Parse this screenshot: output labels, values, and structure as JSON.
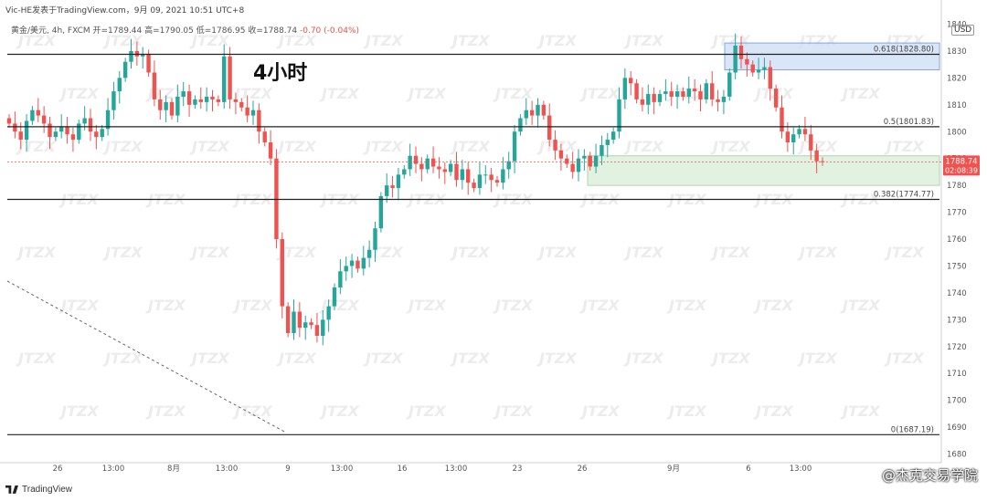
{
  "header": {
    "published": "Vic-HE发表于TradingView.com，9月 09, 2021 10:51 UTC+8",
    "ohlc": "黄金/美元, 4h, FXCM  开=1789.44  高=1790.05  低=1786.95  收=1788.74",
    "change": "-0.70 (-0.04%)"
  },
  "timeframe_label": "4小时",
  "currency": "USD",
  "footer": {
    "logo_text": "TradingView",
    "watermark": "@杰克交易学院"
  },
  "watermark_text": "JTZX",
  "chart_data": {
    "type": "candlestick",
    "ylim": [
      1680,
      1840
    ],
    "y_ticks": [
      1680,
      1690,
      1700,
      1710,
      1720,
      1730,
      1740,
      1750,
      1760,
      1770,
      1780,
      1790,
      1800,
      1810,
      1820,
      1830,
      1840
    ],
    "x_tick_labels": [
      "26",
      "13:00",
      "8月",
      "13:00",
      "9",
      "13:00",
      "16",
      "13:00",
      "23",
      "26",
      "9月",
      "6",
      "13:00"
    ],
    "last_price": "1788.74",
    "countdown": "02:08:39",
    "fib_levels": [
      {
        "label": "0.618(1828.80)",
        "value": 1828.8
      },
      {
        "label": "0.5(1801.83)",
        "value": 1801.83
      },
      {
        "label": "0.382(1774.77)",
        "value": 1774.77
      },
      {
        "label": "0(1687.19)",
        "value": 1687.19
      }
    ],
    "zones": [
      {
        "name": "resistance",
        "from": 1823,
        "to": 1833,
        "color": "#cfe0f7"
      },
      {
        "name": "support",
        "from": 1780,
        "to": 1791,
        "color": "#dcefd9"
      }
    ],
    "colors": {
      "up": "#26a69a",
      "down": "#ef5350",
      "line": "#222222",
      "last": "#ef5350"
    },
    "close_series": [
      1803,
      1800,
      1797,
      1804,
      1808,
      1806,
      1803,
      1798,
      1800,
      1802,
      1799,
      1797,
      1803,
      1805,
      1800,
      1798,
      1801,
      1808,
      1815,
      1820,
      1826,
      1830,
      1828,
      1829,
      1822,
      1812,
      1808,
      1811,
      1806,
      1813,
      1815,
      1810,
      1812,
      1811,
      1813,
      1812,
      1811,
      1828,
      1812,
      1811,
      1809,
      1806,
      1808,
      1800,
      1796,
      1790,
      1760,
      1735,
      1725,
      1733,
      1727,
      1729,
      1728,
      1724,
      1730,
      1735,
      1742,
      1748,
      1750,
      1752,
      1749,
      1753,
      1756,
      1764,
      1776,
      1780,
      1779,
      1784,
      1786,
      1791,
      1788,
      1786,
      1790,
      1787,
      1786,
      1785,
      1788,
      1782,
      1786,
      1781,
      1779,
      1784,
      1784,
      1782,
      1781,
      1786,
      1789,
      1800,
      1805,
      1808,
      1806,
      1810,
      1806,
      1797,
      1793,
      1790,
      1788,
      1785,
      1790,
      1791,
      1787,
      1791,
      1795,
      1797,
      1800,
      1812,
      1820,
      1818,
      1812,
      1810,
      1814,
      1811,
      1814,
      1815,
      1813,
      1815,
      1813,
      1816,
      1815,
      1812,
      1818,
      1812,
      1811,
      1813,
      1822,
      1832,
      1827,
      1825,
      1822,
      1823,
      1824,
      1816,
      1809,
      1800,
      1796,
      1799,
      1801,
      1799,
      1793,
      1789,
      1788.74
    ]
  }
}
